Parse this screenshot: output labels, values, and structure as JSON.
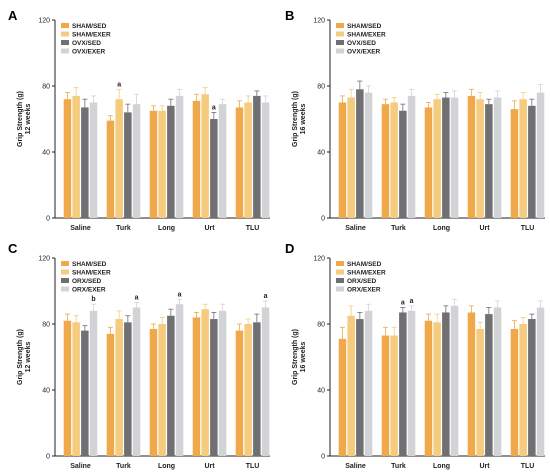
{
  "chart_data": [
    {
      "panel": "A",
      "type": "bar",
      "ylabel": "Grip Strength (g)",
      "ylabel2": "12 weeks",
      "ylim": [
        0,
        120
      ],
      "yticks": [
        "0",
        "40",
        "80",
        "120"
      ],
      "categories": [
        "Saline",
        "Turk",
        "Long",
        "Urt",
        "TLU"
      ],
      "legend_position": "top-left",
      "series": [
        {
          "name": "SHAM/SED",
          "color": "#F0A94A",
          "values": [
            72,
            59,
            65,
            71,
            67
          ],
          "errors": [
            4,
            3,
            3,
            4,
            4
          ]
        },
        {
          "name": "SHAM/EXER",
          "color": "#F5CC7E",
          "values": [
            74,
            72,
            65,
            75,
            70
          ],
          "errors": [
            5,
            6,
            3,
            4,
            4
          ]
        },
        {
          "name": "OVX/SED",
          "color": "#707073",
          "values": [
            67,
            64,
            68,
            60,
            74
          ],
          "errors": [
            5,
            5,
            4,
            4,
            3
          ]
        },
        {
          "name": "OVX/EXER",
          "color": "#D2D3D6",
          "values": [
            70,
            69,
            74,
            69,
            70
          ],
          "errors": [
            4,
            6,
            4,
            3,
            4
          ]
        }
      ],
      "annotations": [
        {
          "category": "Turk",
          "series": 1,
          "text": "a"
        },
        {
          "category": "Urt",
          "series": 2,
          "text": "a"
        }
      ]
    },
    {
      "panel": "B",
      "type": "bar",
      "ylabel": "Grip Strength (g)",
      "ylabel2": "16 weeks",
      "ylim": [
        0,
        120
      ],
      "yticks": [
        "0",
        "40",
        "80",
        "120"
      ],
      "categories": [
        "Saline",
        "Turk",
        "Long",
        "Urt",
        "TLU"
      ],
      "legend_position": "top-left",
      "series": [
        {
          "name": "SHAM/SED",
          "color": "#F0A94A",
          "values": [
            70,
            69,
            67,
            74,
            66
          ],
          "errors": [
            4,
            3,
            3,
            4,
            5
          ]
        },
        {
          "name": "SHAM/EXER",
          "color": "#F5CC7E",
          "values": [
            73,
            70,
            72,
            72,
            72
          ],
          "errors": [
            5,
            3,
            3,
            4,
            4
          ]
        },
        {
          "name": "OVX/SED",
          "color": "#707073",
          "values": [
            78,
            65,
            73,
            69,
            68
          ],
          "errors": [
            5,
            4,
            3,
            3,
            4
          ]
        },
        {
          "name": "OVX/EXER",
          "color": "#D2D3D6",
          "values": [
            76,
            74,
            73,
            73,
            76
          ],
          "errors": [
            4,
            4,
            4,
            4,
            5
          ]
        }
      ],
      "annotations": []
    },
    {
      "panel": "C",
      "type": "bar",
      "ylabel": "Grip Strength (g)",
      "ylabel2": "12 weeks",
      "ylim": [
        0,
        120
      ],
      "yticks": [
        "0",
        "40",
        "80",
        "120"
      ],
      "categories": [
        "Saline",
        "Turk",
        "Long",
        "Urt",
        "TLU"
      ],
      "legend_position": "top-left",
      "series": [
        {
          "name": "SHAM/SED",
          "color": "#F0A94A",
          "values": [
            82,
            74,
            77,
            84,
            76
          ],
          "errors": [
            4,
            4,
            3,
            3,
            4
          ]
        },
        {
          "name": "SHAM/EXER",
          "color": "#F5CC7E",
          "values": [
            81,
            83,
            80,
            89,
            80
          ],
          "errors": [
            4,
            5,
            4,
            3,
            3
          ]
        },
        {
          "name": "ORX/SED",
          "color": "#707073",
          "values": [
            76,
            81,
            85,
            83,
            81
          ],
          "errors": [
            3,
            4,
            4,
            4,
            5
          ]
        },
        {
          "name": "ORX/EXER",
          "color": "#D2D3D6",
          "values": [
            88,
            90,
            92,
            88,
            90
          ],
          "errors": [
            4,
            3,
            3,
            4,
            4
          ]
        }
      ],
      "annotations": [
        {
          "category": "Saline",
          "series": 3,
          "text": "b"
        },
        {
          "category": "Turk",
          "series": 3,
          "text": "a"
        },
        {
          "category": "Long",
          "series": 3,
          "text": "a"
        },
        {
          "category": "TLU",
          "series": 3,
          "text": "a"
        }
      ]
    },
    {
      "panel": "D",
      "type": "bar",
      "ylabel": "Grip Strength (g)",
      "ylabel2": "16 weeks",
      "ylim": [
        0,
        120
      ],
      "yticks": [
        "0",
        "40",
        "80",
        "120"
      ],
      "categories": [
        "Saline",
        "Turk",
        "Long",
        "Urt",
        "TLU"
      ],
      "legend_position": "top-left",
      "series": [
        {
          "name": "SHAM/SED",
          "color": "#F0A94A",
          "values": [
            71,
            73,
            82,
            87,
            77
          ],
          "errors": [
            7,
            5,
            4,
            4,
            5
          ]
        },
        {
          "name": "SHAM/EXER",
          "color": "#F5CC7E",
          "values": [
            85,
            73,
            81,
            77,
            80
          ],
          "errors": [
            6,
            5,
            5,
            4,
            4
          ]
        },
        {
          "name": "ORX/SED",
          "color": "#707073",
          "values": [
            83,
            87,
            87,
            86,
            83
          ],
          "errors": [
            4,
            3,
            4,
            4,
            3
          ]
        },
        {
          "name": "ORX/EXER",
          "color": "#D2D3D6",
          "values": [
            88,
            88,
            91,
            90,
            90
          ],
          "errors": [
            4,
            3,
            4,
            4,
            4
          ]
        }
      ],
      "annotations": [
        {
          "category": "Turk",
          "series": 2,
          "text": "a"
        },
        {
          "category": "Turk",
          "series": 3,
          "text": "a"
        }
      ]
    }
  ]
}
